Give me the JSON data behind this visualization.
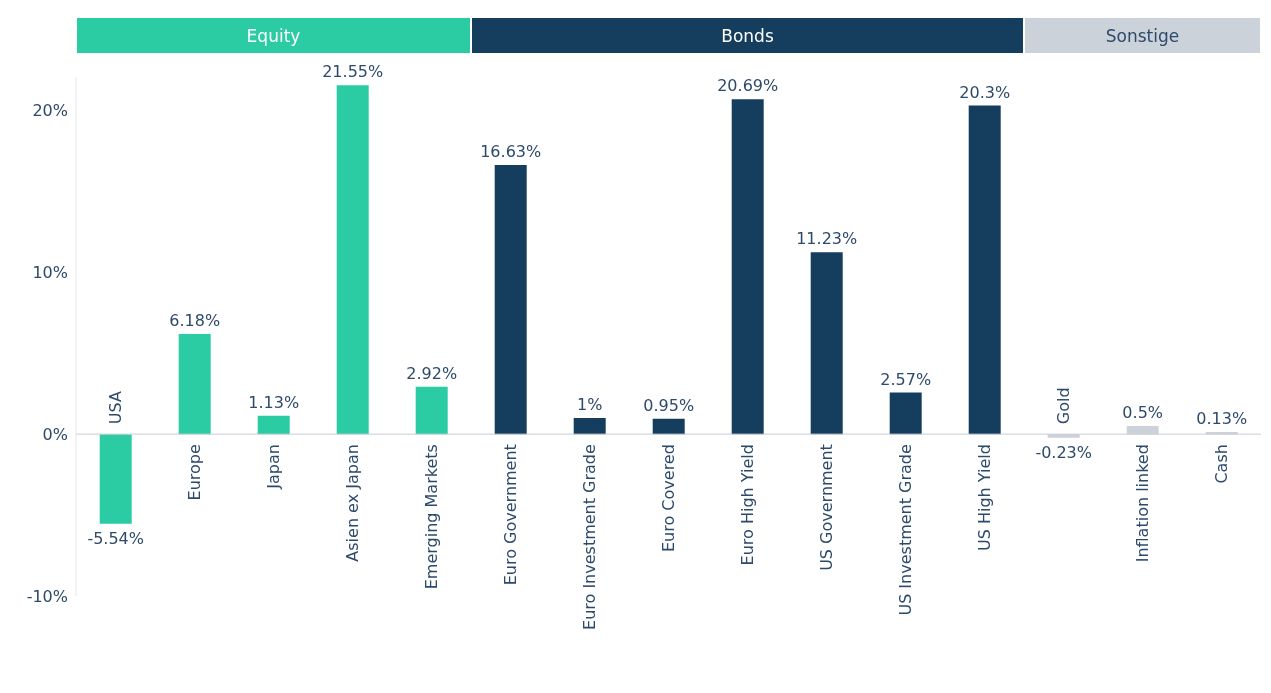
{
  "chart_data": {
    "type": "bar",
    "categories": [
      "USA",
      "Europe",
      "Japan",
      "Asien ex Japan",
      "Emerging Markets",
      "Euro Government",
      "Euro Investment Grade",
      "Euro Covered",
      "Euro High Yield",
      "US Government",
      "US Investment Grade",
      "US High Yield",
      "Gold",
      "Inflation linked",
      "Cash"
    ],
    "values": [
      -5.54,
      6.18,
      1.13,
      21.55,
      2.92,
      16.63,
      1,
      0.95,
      20.69,
      11.23,
      2.57,
      20.3,
      -0.23,
      0.5,
      0.13
    ],
    "colors": [
      "#2bcca4",
      "#2bcca4",
      "#2bcca4",
      "#2bcca4",
      "#2bcca4",
      "#143d5e",
      "#143d5e",
      "#143d5e",
      "#143d5e",
      "#143d5e",
      "#143d5e",
      "#143d5e",
      "#ccd2d9",
      "#ccd2d9",
      "#ccd2d9"
    ],
    "value_labels": [
      "-5.54%",
      "6.18%",
      "1.13%",
      "21.55%",
      "2.92%",
      "16.63%",
      "1%",
      "0.95%",
      "20.69%",
      "11.23%",
      "2.57%",
      "20.3%",
      "-0.23%",
      "0.5%",
      "0.13%"
    ],
    "ylim": [
      -10,
      22
    ],
    "yticks": [
      {
        "value": -10,
        "label": "-10%"
      },
      {
        "value": 0,
        "label": "0%"
      },
      {
        "value": 10,
        "label": "10%"
      },
      {
        "value": 20,
        "label": "20%"
      }
    ],
    "annotations": [
      "Equity",
      "Bonds",
      "Sonstige"
    ],
    "grid": false,
    "legend": false
  }
}
